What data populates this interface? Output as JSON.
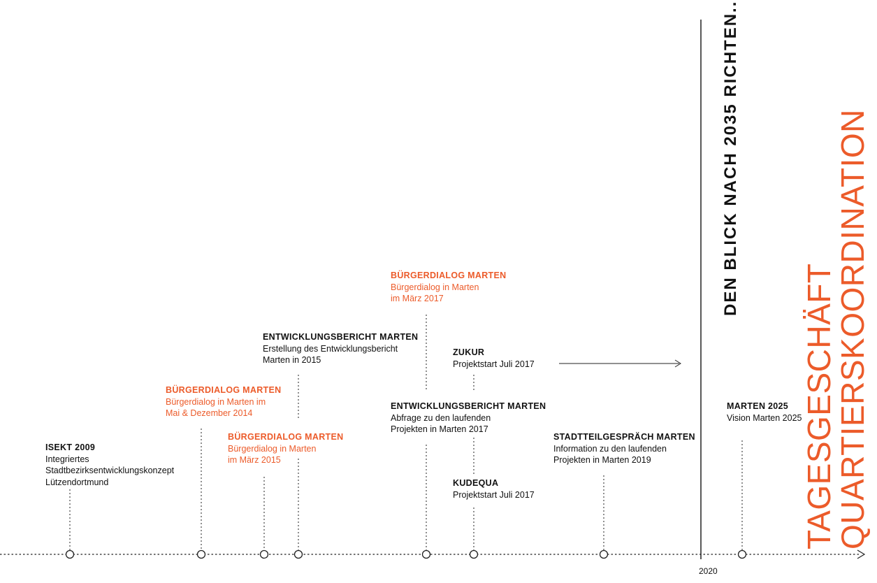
{
  "colors": {
    "accent": "#ec5b2a",
    "text": "#111111"
  },
  "events": [
    {
      "id": "isekt",
      "title": "ISEKT 2009",
      "lines": [
        "Integriertes",
        "Stadtbezirksentwicklungskonzept",
        "Lützendortmund"
      ],
      "accent": false
    },
    {
      "id": "bd2014",
      "title": "BÜRGERDIALOG MARTEN",
      "lines": [
        "Bürgerdialog in Marten im",
        "Mai & Dezember 2014"
      ],
      "accent": true
    },
    {
      "id": "bd2015",
      "title": "BÜRGERDIALOG MARTEN",
      "lines": [
        "Bürgerdialog in Marten",
        "im März 2015"
      ],
      "accent": true
    },
    {
      "id": "eb2015",
      "title": "ENTWICKLUNGSBERICHT MARTEN",
      "lines": [
        "Erstellung des Entwicklungsbericht",
        "Marten in 2015"
      ],
      "accent": false
    },
    {
      "id": "bd2017",
      "title": "BÜRGERDIALOG MARTEN",
      "lines": [
        "Bürgerdialog in Marten",
        "im März 2017"
      ],
      "accent": true
    },
    {
      "id": "eb2017",
      "title": "ENTWICKLUNGSBERICHT MARTEN",
      "lines": [
        "Abfrage zu den laufenden",
        "Projekten in Marten 2017"
      ],
      "accent": false
    },
    {
      "id": "zukur",
      "title": "ZUKUR",
      "lines": [
        "Projektstart Juli 2017"
      ],
      "accent": false
    },
    {
      "id": "kudequa",
      "title": "KUDEQUA",
      "lines": [
        "Projektstart Juli 2017"
      ],
      "accent": false
    },
    {
      "id": "stadtteil",
      "title": "STADTTEILGESPRÄCH MARTEN",
      "lines": [
        "Information zu den laufenden",
        "Projekten in Marten 2019"
      ],
      "accent": false
    },
    {
      "id": "marten2025",
      "title": "MARTEN 2025",
      "lines": [
        "Vision Marten 2025"
      ],
      "accent": false
    }
  ],
  "year_label": "2020",
  "vision_heading": "DEN BLICK NACH 2035 RICHTEN...",
  "side_heading": {
    "line1": "TAGESGESCHÄFT",
    "line2": "QUARTIERSKOORDINATION"
  }
}
